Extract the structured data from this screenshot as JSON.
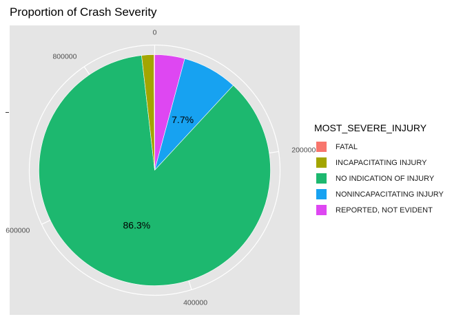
{
  "chart_data": {
    "type": "pie",
    "title": "Proportion of Crash Severity",
    "xlabel": "",
    "ylabel": "",
    "legend_title": "MOST_SEVERE_INJURY",
    "legend_position": "right",
    "grid": true,
    "polar_axis_ticks": [
      "0",
      "200000",
      "400000",
      "600000",
      "800000"
    ],
    "polar_axis_tick_values": [
      0,
      200000,
      400000,
      600000,
      800000
    ],
    "total": 884000,
    "categories": [
      "FATAL",
      "INCAPACITATING INJURY",
      "NO INDICATION OF INJURY",
      "NONINCAPACITATING INJURY",
      "REPORTED, NOT EVIDENT"
    ],
    "values": [
      1000,
      15000,
      763000,
      68000,
      37000
    ],
    "colors": [
      "#F8766D",
      "#A3A500",
      "#1DB86F",
      "#17A2F1",
      "#DE47F2"
    ],
    "slice_labels": [
      "",
      "",
      "86.3%",
      "7.7%",
      ""
    ]
  }
}
